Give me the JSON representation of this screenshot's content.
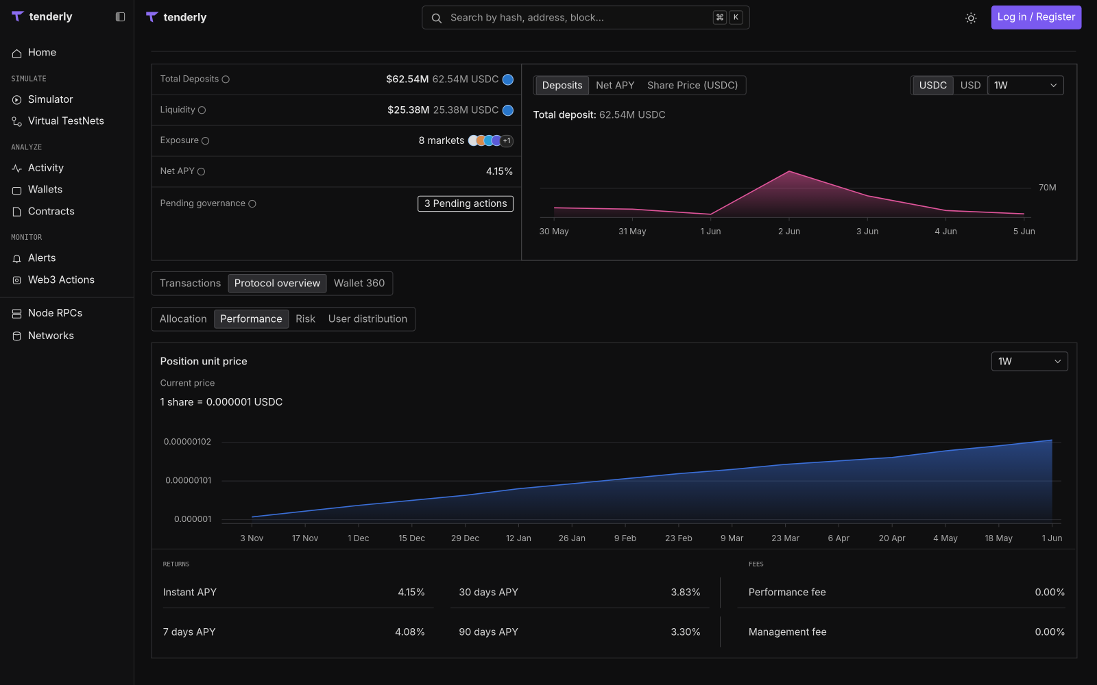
{
  "sidebar": {
    "brand": "tenderly",
    "home": "Home",
    "sections": [
      {
        "title": "SIMULATE",
        "items": [
          "Simulator",
          "Virtual TestNets"
        ]
      },
      {
        "title": "ANALYZE",
        "items": [
          "Activity",
          "Wallets",
          "Contracts"
        ]
      },
      {
        "title": "MONITOR",
        "items": [
          "Alerts",
          "Web3 Actions"
        ]
      }
    ],
    "infra": [
      "Node RPCs",
      "Networks"
    ]
  },
  "topbar": {
    "brand": "tenderly",
    "search_placeholder": "Search by hash, address, block...",
    "shortcut": [
      "⌘",
      "K"
    ],
    "login": "Log in / Register"
  },
  "stats": {
    "total_deposits": {
      "label": "Total Deposits",
      "value": "$62.54M",
      "secondary": "62.54M USDC"
    },
    "liquidity": {
      "label": "Liquidity",
      "value": "$25.38M",
      "secondary": "25.38M USDC"
    },
    "exposure": {
      "label": "Exposure",
      "value": "8 markets",
      "extra": "+1"
    },
    "net_apy": {
      "label": "Net APY",
      "value": "4.15%"
    },
    "pending": {
      "label": "Pending governance",
      "button": "3 Pending actions"
    }
  },
  "deposit_panel": {
    "tabs": [
      "Deposits",
      "Net APY",
      "Share Price (USDC)"
    ],
    "currencies": [
      "USDC",
      "USD"
    ],
    "range": "1W",
    "total_label": "Total deposit:",
    "total_value": "62.54M USDC"
  },
  "tabs": {
    "primary": [
      "Transactions",
      "Protocol overview",
      "Wallet 360"
    ],
    "secondary": [
      "Allocation",
      "Performance",
      "Risk",
      "User distribution"
    ]
  },
  "performance": {
    "title": "Position unit price",
    "range": "1W",
    "current_label": "Current price",
    "current_value": "1 share = 0.000001 USDC"
  },
  "returns": {
    "title": "RETURNS",
    "items": [
      {
        "label": "Instant APY",
        "value": "4.15%"
      },
      {
        "label": "30 days APY",
        "value": "3.83%"
      },
      {
        "label": "7 days APY",
        "value": "4.08%"
      },
      {
        "label": "90 days APY",
        "value": "3.30%"
      }
    ]
  },
  "fees": {
    "title": "FEES",
    "items": [
      {
        "label": "Performance fee",
        "value": "0.00%"
      },
      {
        "label": "Management fee",
        "value": "0.00%"
      }
    ]
  },
  "chart_data": [
    {
      "type": "area",
      "x": [
        "30 May",
        "31 May",
        "1 Jun",
        "2 Jun",
        "3 Jun",
        "4 Jun",
        "5 Jun"
      ],
      "values": [
        64.3,
        63.9,
        62.4,
        75.0,
        67.8,
        63.5,
        62.54
      ],
      "color": "#e0559b",
      "ylim": [
        61.5,
        76
      ],
      "yticks": [
        {
          "value": 70,
          "label": "70M"
        }
      ],
      "grid": true,
      "tick_side": "right"
    },
    {
      "type": "area",
      "x": [
        "3 Nov",
        "17 Nov",
        "1 Dec",
        "15 Dec",
        "29 Dec",
        "12 Jan",
        "26 Jan",
        "9 Feb",
        "23 Feb",
        "9 Mar",
        "23 Mar",
        "6 Apr",
        "20 Apr",
        "4 May",
        "18 May",
        "1 Jun"
      ],
      "values": [
        1.0007e-06,
        1.0022e-06,
        1.0037e-06,
        1.005e-06,
        1.0063e-06,
        1.008e-06,
        1.0093e-06,
        1.0106e-06,
        1.0119e-06,
        1.013e-06,
        1.0143e-06,
        1.0152e-06,
        1.0161e-06,
        1.0178e-06,
        1.0191e-06,
        1.0206e-06
      ],
      "color": "#3b6fd8",
      "ylim": [
        9.99e-07,
        1.0225e-06
      ],
      "yticks": [
        1e-06,
        1.01e-06,
        1.02e-06
      ],
      "grid": true,
      "tick_side": "left"
    }
  ]
}
